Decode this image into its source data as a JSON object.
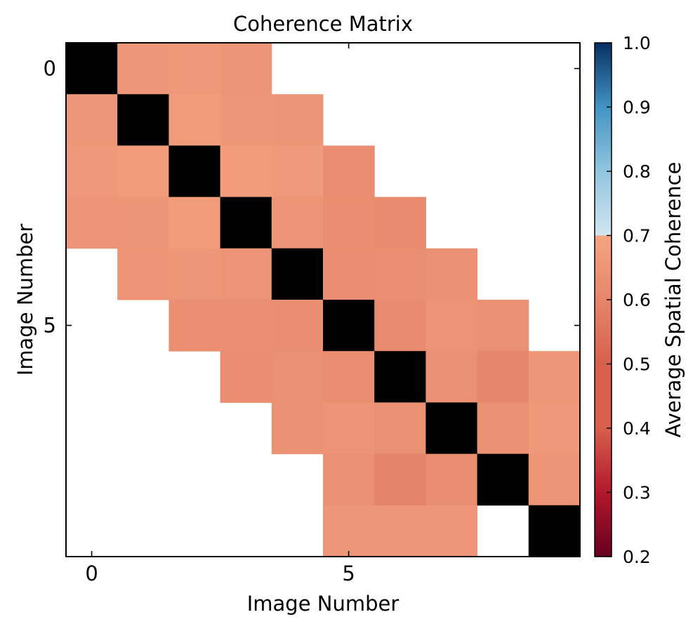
{
  "chart_data": {
    "type": "heatmap",
    "title": "Coherence Matrix",
    "xlabel": "Image Number",
    "ylabel": "Image Number",
    "x_ticks": [
      0,
      5
    ],
    "y_ticks": [
      0,
      5
    ],
    "x_tick_labels": [
      "0",
      "5"
    ],
    "y_tick_labels": [
      "0",
      "5"
    ],
    "colorbar": {
      "label": "Average Spatial Coherence",
      "range": [
        0.2,
        1.0
      ],
      "ticks": [
        0.2,
        0.3,
        0.4,
        0.5,
        0.6,
        0.7,
        0.8,
        0.9,
        1.0
      ],
      "tick_labels": [
        "0.2",
        "0.3",
        "0.4",
        "0.5",
        "0.6",
        "0.7",
        "0.8",
        "0.9",
        "1.0"
      ],
      "colormap": "RdBu",
      "stops": [
        [
          0.2,
          "#67001f"
        ],
        [
          0.3,
          "#b2182b"
        ],
        [
          0.4,
          "#d6604d"
        ],
        [
          0.5,
          "#d6604d"
        ],
        [
          0.6,
          "#e6866b"
        ],
        [
          0.7,
          "#f4a582"
        ],
        [
          0.7001,
          "#d1e5f0"
        ],
        [
          0.8,
          "#92c5de"
        ],
        [
          0.9,
          "#4393c3"
        ],
        [
          1.0,
          "#053061"
        ]
      ]
    },
    "size": 10,
    "diagonal_color": "#000000",
    "missing_color": "#ffffff",
    "values": [
      [
        null,
        0.655,
        0.66,
        0.65,
        null,
        null,
        null,
        null,
        null,
        null
      ],
      [
        0.655,
        null,
        0.675,
        0.655,
        0.65,
        null,
        null,
        null,
        null,
        null
      ],
      [
        0.66,
        0.67,
        null,
        0.675,
        0.665,
        0.625,
        null,
        null,
        null,
        null
      ],
      [
        0.645,
        0.65,
        0.675,
        null,
        0.645,
        0.625,
        0.615,
        null,
        null,
        null
      ],
      [
        null,
        0.645,
        0.655,
        0.645,
        null,
        0.625,
        0.63,
        0.635,
        null,
        null
      ],
      [
        null,
        null,
        0.63,
        0.63,
        0.625,
        null,
        0.615,
        0.645,
        0.635,
        null
      ],
      [
        null,
        null,
        null,
        0.625,
        0.635,
        0.625,
        null,
        0.635,
        0.6,
        0.655
      ],
      [
        null,
        null,
        null,
        null,
        0.64,
        0.645,
        0.635,
        null,
        0.64,
        0.66
      ],
      [
        null,
        null,
        null,
        null,
        null,
        0.635,
        0.595,
        0.625,
        null,
        0.65
      ],
      [
        null,
        null,
        null,
        null,
        null,
        0.655,
        0.655,
        0.655,
        null,
        null
      ]
    ]
  }
}
